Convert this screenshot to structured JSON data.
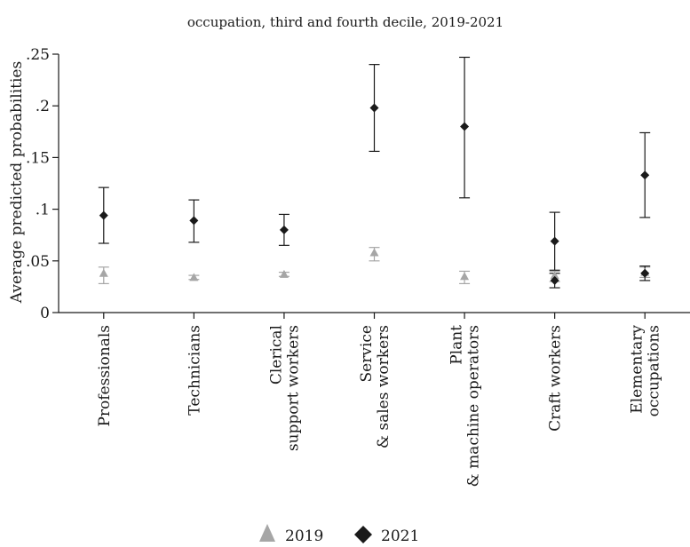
{
  "chart_data": {
    "type": "scatter",
    "title": "occupation, third and fourth decile, 2019-2021",
    "ylabel": "Average predicted probabilities",
    "xlabel": "",
    "ylim": [
      0,
      0.25
    ],
    "yticks": [
      {
        "value": 0,
        "label": "0"
      },
      {
        "value": 0.05,
        "label": ".05"
      },
      {
        "value": 0.1,
        "label": ".1"
      },
      {
        "value": 0.15,
        "label": ".15"
      },
      {
        "value": 0.2,
        "label": ".2"
      },
      {
        "value": 0.25,
        "label": ".25"
      }
    ],
    "categories": [
      [
        "Professionals"
      ],
      [
        "Technicians"
      ],
      [
        "Clerical",
        "support workers"
      ],
      [
        "Service",
        "& sales workers"
      ],
      [
        "Plant",
        "& machine operators"
      ],
      [
        "Craft workers"
      ],
      [
        "Elementary",
        "occupations"
      ]
    ],
    "series": [
      {
        "name": "2019",
        "marker": "triangle",
        "color": "#a6a6a6",
        "values": [
          0.038,
          0.034,
          0.037,
          0.058,
          0.035,
          0.036,
          0.039
        ],
        "lower": [
          0.028,
          0.032,
          0.035,
          0.05,
          0.028,
          0.03,
          0.034
        ],
        "upper": [
          0.044,
          0.036,
          0.039,
          0.063,
          0.04,
          0.04,
          0.044
        ]
      },
      {
        "name": "2021",
        "marker": "diamond",
        "color": "#1a1a1a",
        "values": [
          0.094,
          0.089,
          0.08,
          0.198,
          0.18,
          0.069,
          0.133
        ],
        "lower": [
          0.067,
          0.068,
          0.065,
          0.156,
          0.111,
          0.041,
          0.092
        ],
        "upper": [
          0.121,
          0.109,
          0.095,
          0.24,
          0.247,
          0.097,
          0.174
        ]
      },
      {
        "name": "",
        "marker": "diamond",
        "color": "#1a1a1a",
        "values": [
          null,
          null,
          null,
          null,
          null,
          0.031,
          0.038
        ],
        "lower": [
          null,
          null,
          null,
          null,
          null,
          0.024,
          0.031
        ],
        "upper": [
          null,
          null,
          null,
          null,
          null,
          0.038,
          0.045
        ]
      }
    ],
    "legend": [
      "2019",
      "2021"
    ],
    "legend_position": "bottom",
    "grid": false
  }
}
